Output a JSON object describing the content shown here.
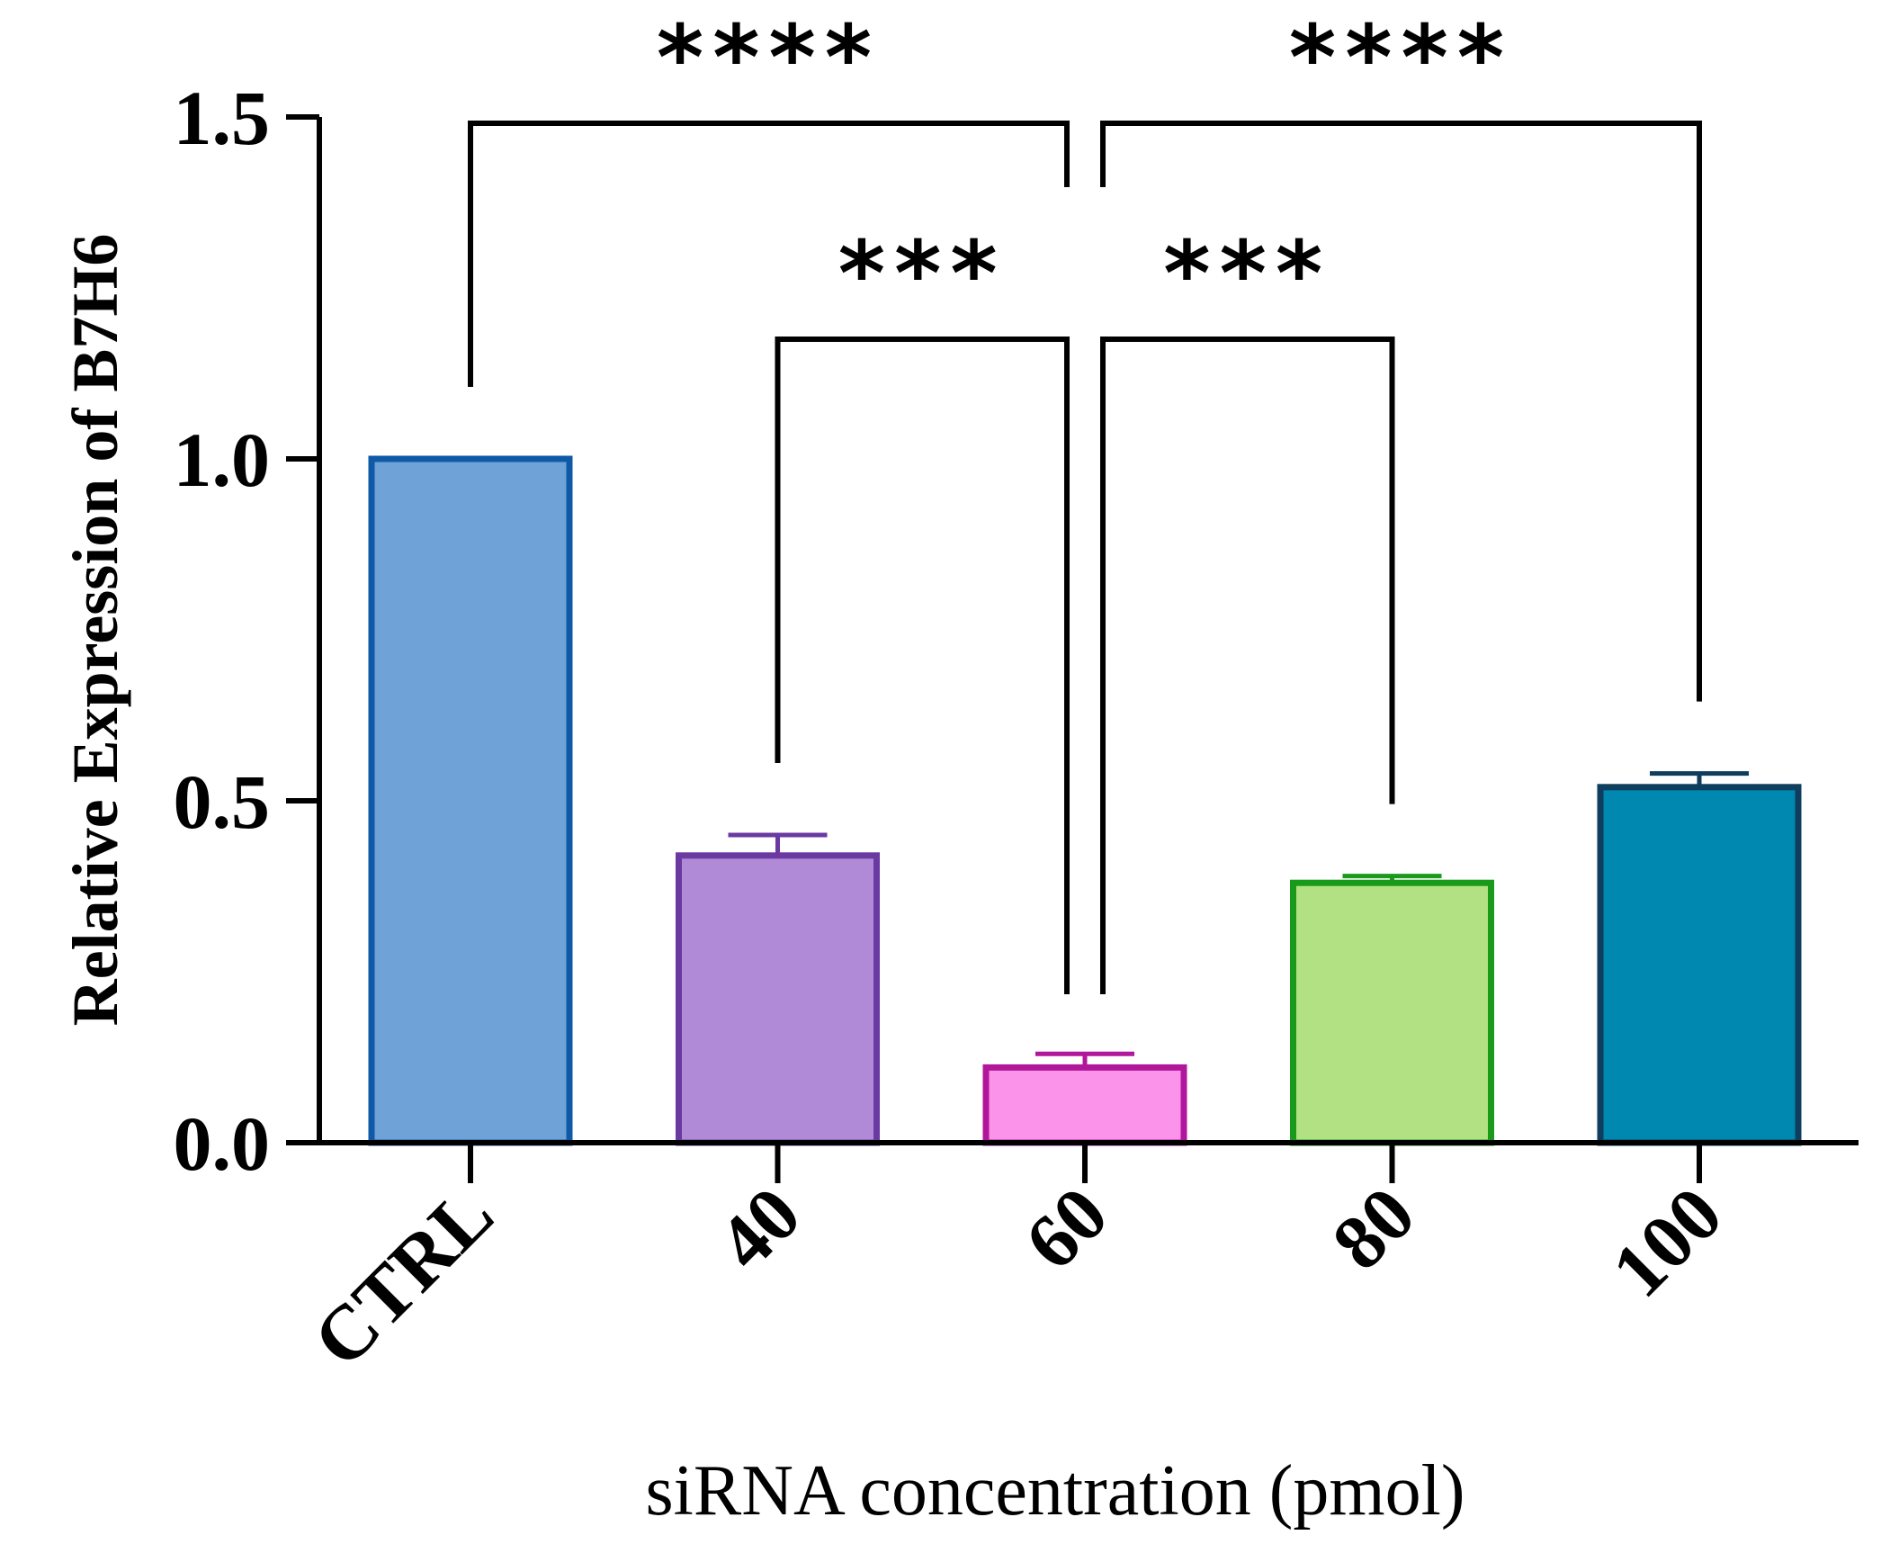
{
  "chart_data": {
    "type": "bar",
    "title": "",
    "xlabel": "siRNA concentration (pmol)",
    "ylabel": "Relative Expression of B7H6",
    "ylim": [
      0,
      1.5
    ],
    "yticks": [
      0.0,
      0.5,
      1.0,
      1.5
    ],
    "ytick_labels": [
      "0.0",
      "0.5",
      "1.0",
      "1.5"
    ],
    "categories": [
      "CTRL",
      "40",
      "60",
      "80",
      "100"
    ],
    "values": [
      1.0,
      0.42,
      0.11,
      0.38,
      0.52
    ],
    "errors": [
      0.0,
      0.03,
      0.02,
      0.01,
      0.02
    ],
    "fill_colors": [
      "#6fa2d6",
      "#b08ad6",
      "#fc93ea",
      "#b1e183",
      "#0088b0"
    ],
    "edge_colors": [
      "#0f5aa6",
      "#6a3aa2",
      "#b0179a",
      "#199a1a",
      "#0f3d5d"
    ],
    "grid": false,
    "legend": "none",
    "significance": [
      {
        "from": "CTRL",
        "to": "60",
        "label": "****"
      },
      {
        "from": "60",
        "to": "100",
        "label": "****"
      },
      {
        "from": "40",
        "to": "60",
        "label": "***"
      },
      {
        "from": "60",
        "to": "80",
        "label": "***"
      }
    ]
  }
}
